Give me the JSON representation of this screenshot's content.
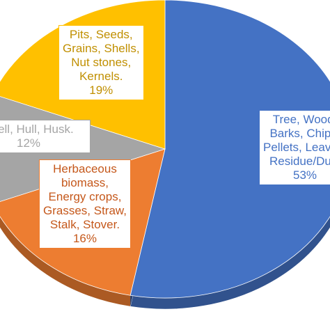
{
  "chart_data": {
    "type": "pie",
    "title": "",
    "slices": [
      {
        "name": "Tree, Wood, Barks, Chips, Pellets, Leaves, Residue/Dust",
        "lines": [
          "Tree, Wood,",
          "Barks, Chips,",
          "Pellets, Leaves,",
          "Residue/Dust"
        ],
        "pct_label": "53%",
        "value": 53,
        "color": "#4472c4",
        "text_color": "#4472c4"
      },
      {
        "name": "Herbaceous biomass, Energy crops, Grasses, Straw, Stalk, Stover.",
        "lines": [
          "Herbaceous",
          "biomass,",
          "Energy crops,",
          "Grasses, Straw,",
          "Stalk, Stover."
        ],
        "pct_label": "16%",
        "value": 16,
        "color": "#ed7d31",
        "text_color": "#c5581b"
      },
      {
        "name": "Shell, Hull, Husk.",
        "lines": [
          "Shell, Hull, Husk."
        ],
        "pct_label": "12%",
        "value": 12,
        "color": "#a5a5a5",
        "text_color": "#a5a5a5"
      },
      {
        "name": "Pits, Seeds, Grains, Shells, Nut stones, Kernels.",
        "lines": [
          "Pits, Seeds,",
          "Grains, Shells,",
          "Nut stones,",
          "Kernels."
        ],
        "pct_label": "19%",
        "value": 19,
        "color": "#ffc000",
        "text_color": "#c08f00"
      }
    ]
  }
}
